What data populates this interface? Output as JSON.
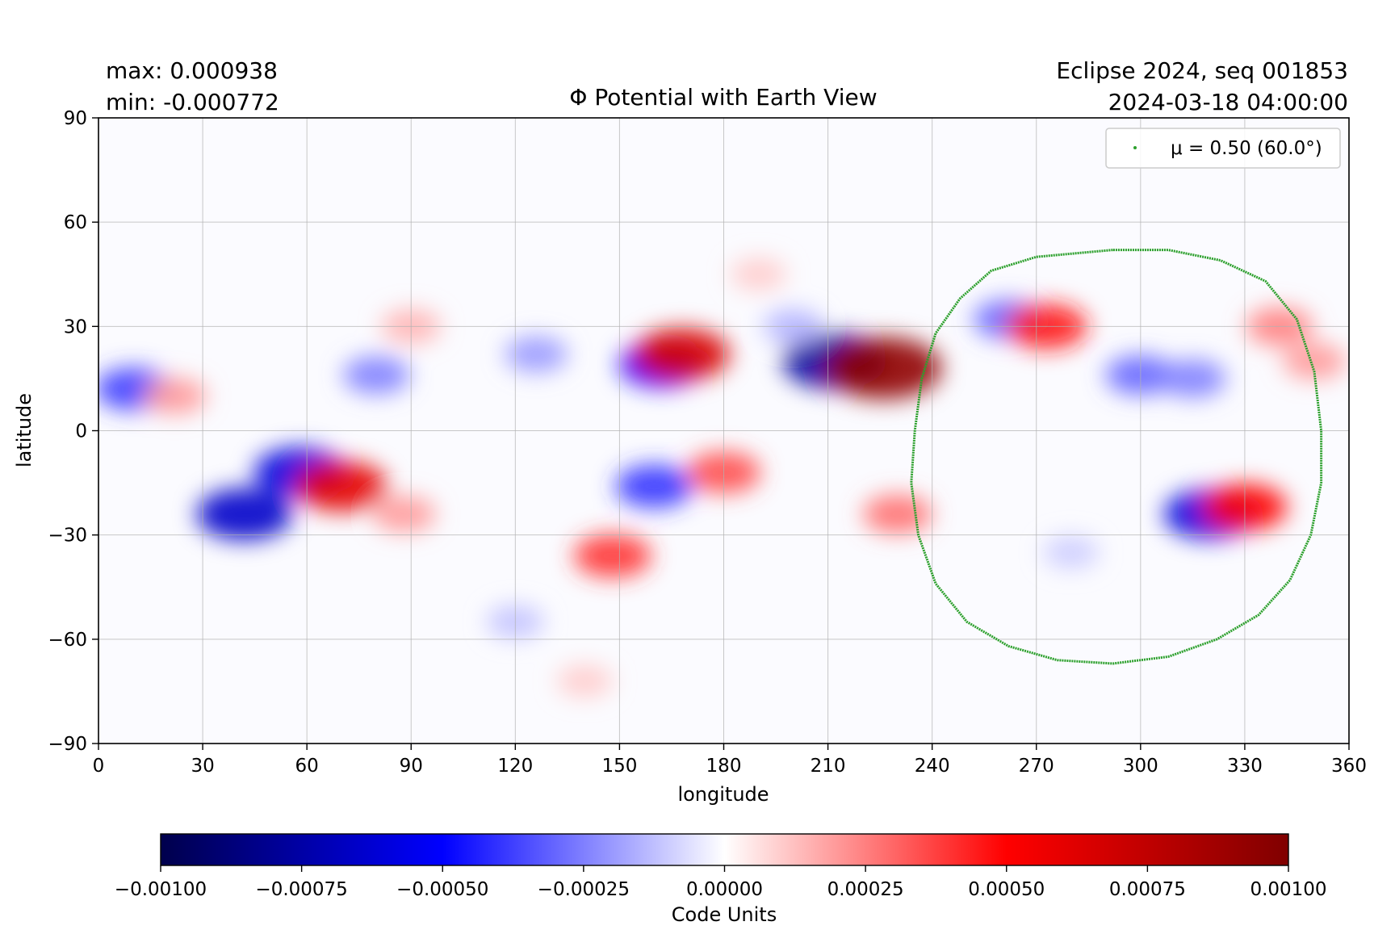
{
  "chart_data": {
    "type": "heatmap",
    "title": "Φ Potential with Earth View",
    "stats": {
      "max_label": "max:  0.000938",
      "min_label": "min:  -0.000772"
    },
    "info": {
      "line1": "Eclipse 2024, seq 001853",
      "line2": "2024-03-18 04:00:00"
    },
    "xlabel": "longitude",
    "ylabel": "latitude",
    "xlim": [
      0,
      360
    ],
    "ylim": [
      -90,
      90
    ],
    "xticks": [
      0,
      30,
      60,
      90,
      120,
      150,
      180,
      210,
      240,
      270,
      300,
      330,
      360
    ],
    "yticks": [
      90,
      60,
      30,
      0,
      -30,
      -60,
      -90
    ],
    "ytick_labels": [
      "90",
      "60",
      "30",
      "0",
      "−30",
      "−60",
      "−90"
    ],
    "grid": true,
    "legend": {
      "placement": "top-right",
      "label": "μ = 0.50 (60.0°)",
      "color": "#2ca02c"
    },
    "colorbar": {
      "label": "Code Units",
      "range": [
        -0.001,
        0.001
      ],
      "ticks": [
        "−0.00100",
        "−0.00075",
        "−0.00050",
        "−0.00025",
        "0.00000",
        "0.00025",
        "0.00050",
        "0.00075",
        "0.00100"
      ],
      "colormap": "seismic"
    },
    "earth_view_contour": {
      "color": "#2ca02c",
      "points": [
        [
          292,
          52
        ],
        [
          270,
          50
        ],
        [
          257,
          46
        ],
        [
          248,
          38
        ],
        [
          241,
          28
        ],
        [
          237,
          15
        ],
        [
          235,
          0
        ],
        [
          234,
          -15
        ],
        [
          236,
          -30
        ],
        [
          241,
          -44
        ],
        [
          250,
          -55
        ],
        [
          262,
          -62
        ],
        [
          276,
          -66
        ],
        [
          292,
          -67
        ],
        [
          308,
          -65
        ],
        [
          322,
          -60
        ],
        [
          334,
          -53
        ],
        [
          343,
          -43
        ],
        [
          349,
          -30
        ],
        [
          352,
          -15
        ],
        [
          352,
          0
        ],
        [
          350,
          17
        ],
        [
          345,
          32
        ],
        [
          336,
          43
        ],
        [
          323,
          49
        ],
        [
          308,
          52
        ],
        [
          292,
          52
        ]
      ]
    },
    "features": [
      {
        "lon": 10,
        "lat": 12,
        "value": -0.00038
      },
      {
        "lon": 22,
        "lat": 10,
        "value": 0.0002
      },
      {
        "lon": 80,
        "lat": 16,
        "value": -0.00025
      },
      {
        "lon": 42,
        "lat": -24,
        "value": -0.00065
      },
      {
        "lon": 58,
        "lat": -12,
        "value": -0.0006
      },
      {
        "lon": 70,
        "lat": -16,
        "value": 0.0006
      },
      {
        "lon": 88,
        "lat": -24,
        "value": 0.0002
      },
      {
        "lon": 126,
        "lat": 22,
        "value": -0.0002
      },
      {
        "lon": 162,
        "lat": 19,
        "value": -0.0005
      },
      {
        "lon": 168,
        "lat": 22,
        "value": 0.00065
      },
      {
        "lon": 160,
        "lat": -16,
        "value": -0.0004
      },
      {
        "lon": 180,
        "lat": -12,
        "value": 0.00035
      },
      {
        "lon": 148,
        "lat": -36,
        "value": 0.0004
      },
      {
        "lon": 212,
        "lat": 20,
        "value": -0.00077
      },
      {
        "lon": 226,
        "lat": 18,
        "value": 0.000938
      },
      {
        "lon": 230,
        "lat": -24,
        "value": 0.00028
      },
      {
        "lon": 262,
        "lat": 32,
        "value": -0.0003
      },
      {
        "lon": 273,
        "lat": 30,
        "value": 0.00045
      },
      {
        "lon": 300,
        "lat": 16,
        "value": -0.0003
      },
      {
        "lon": 315,
        "lat": 15,
        "value": -0.00025
      },
      {
        "lon": 320,
        "lat": -24,
        "value": -0.0006
      },
      {
        "lon": 330,
        "lat": -22,
        "value": 0.0005
      },
      {
        "lon": 340,
        "lat": 30,
        "value": 0.00025
      },
      {
        "lon": 90,
        "lat": 30,
        "value": 0.00015
      },
      {
        "lon": 200,
        "lat": 30,
        "value": -0.00015
      },
      {
        "lon": 190,
        "lat": 45,
        "value": 0.0001
      },
      {
        "lon": 120,
        "lat": -55,
        "value": -0.00012
      },
      {
        "lon": 140,
        "lat": -72,
        "value": 0.0001
      },
      {
        "lon": 280,
        "lat": -35,
        "value": -0.0001
      },
      {
        "lon": 350,
        "lat": 20,
        "value": 0.0002
      }
    ]
  }
}
